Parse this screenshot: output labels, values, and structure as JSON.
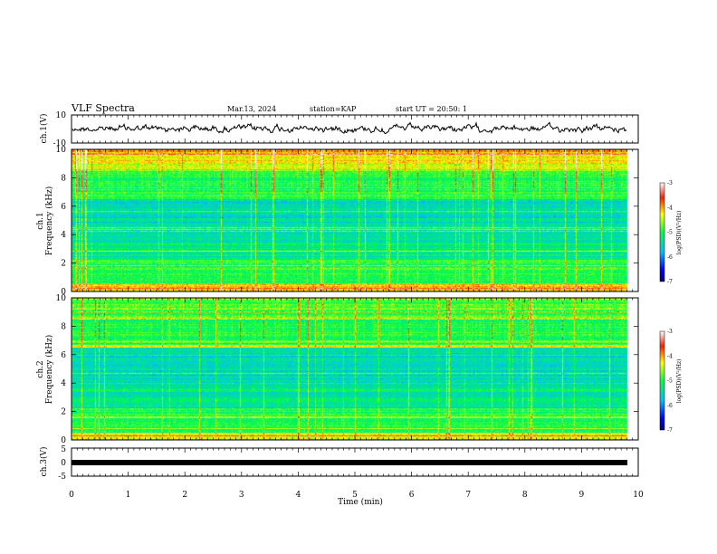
{
  "header": {
    "title": "VLF Spectra",
    "date": "Mar.13, 2024",
    "station": "station=KAP",
    "start": "start UT = 20:50: 1"
  },
  "chart_data": [
    {
      "type": "line",
      "ylabel": "ch.1(V)",
      "ylim": [
        -10,
        10
      ],
      "yticks": [
        "10",
        "-10"
      ],
      "xlim": [
        0,
        10
      ],
      "series_description": "noisy waveform centered near 0 V"
    },
    {
      "type": "heatmap",
      "ylabel_channel": "ch.1",
      "ylabel": "Frequency (kHz)",
      "ylim": [
        0,
        10
      ],
      "yticks": [
        "0",
        "2",
        "4",
        "6",
        "8",
        "10"
      ],
      "colorbar": {
        "ticks": [
          "-3",
          "-4",
          "-5",
          "-6",
          "-7"
        ],
        "label": "log(PSD)(V²/Hz)",
        "range": [
          -7,
          -3
        ]
      }
    },
    {
      "type": "heatmap",
      "ylabel_channel": "ch.2",
      "ylabel": "Frequency (kHz)",
      "ylim": [
        0,
        10
      ],
      "yticks": [
        "0",
        "2",
        "4",
        "6",
        "8",
        "10"
      ],
      "colorbar": {
        "ticks": [
          "-3",
          "-4",
          "-5",
          "-6",
          "-7"
        ],
        "label": "log(PSD)(V²/Hz)",
        "range": [
          -7,
          -3
        ]
      }
    },
    {
      "type": "line",
      "ylabel": "ch.3(V)",
      "ylim": [
        -5,
        5
      ],
      "yticks": [
        "5",
        "0",
        "-5"
      ],
      "xlabel": "Time (min)",
      "xlim": [
        0,
        10
      ],
      "xticks": [
        "0",
        "1",
        "2",
        "3",
        "4",
        "5",
        "6",
        "7",
        "8",
        "9",
        "10"
      ]
    }
  ]
}
